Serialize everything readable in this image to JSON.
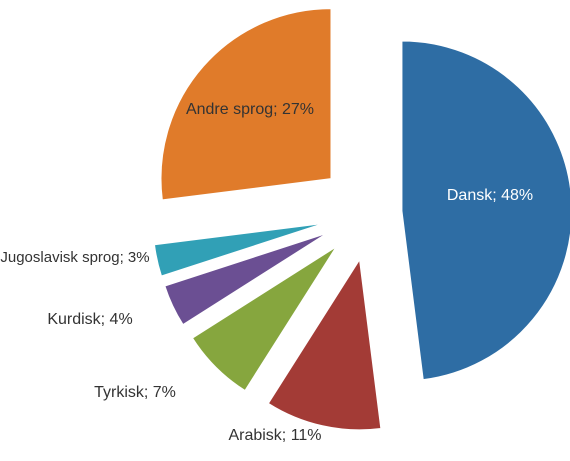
{
  "chart_data": {
    "type": "pie",
    "values": [
      48,
      11,
      7,
      4,
      3,
      27
    ],
    "value_labels": [
      "Dansk; 48%",
      "Arabisk; 11%",
      "Tyrkisk; 7%",
      "Kurdisk; 4%",
      "Jugoslavisk sprog; 3%",
      "Andre sprog; 27%"
    ],
    "colors": [
      "#2e6da4",
      "#a33b36",
      "#86a63e",
      "#6b4f93",
      "#31a0b6",
      "#e07b2a"
    ]
  }
}
